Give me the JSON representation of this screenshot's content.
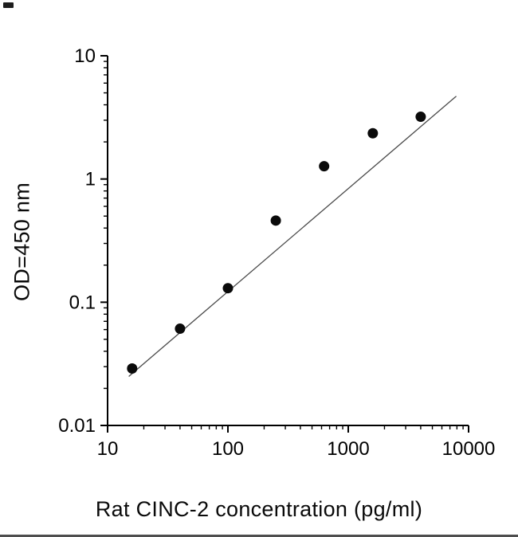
{
  "page": {
    "background": "#ffffff"
  },
  "chart_data": {
    "type": "scatter",
    "title": "",
    "xlabel": "Rat CINC-2 concentration (pg/ml)",
    "ylabel": "OD=450 nm",
    "x_scale": "log",
    "y_scale": "log",
    "xlim": [
      10,
      10000
    ],
    "ylim": [
      0.01,
      10
    ],
    "x_ticks": [
      10,
      100,
      1000,
      10000
    ],
    "y_ticks": [
      0.01,
      0.1,
      1,
      10
    ],
    "grid": "off",
    "legend": "none",
    "points": [
      {
        "x": 16,
        "y": 0.029
      },
      {
        "x": 40,
        "y": 0.061
      },
      {
        "x": 100,
        "y": 0.13
      },
      {
        "x": 250,
        "y": 0.46
      },
      {
        "x": 630,
        "y": 1.27
      },
      {
        "x": 1600,
        "y": 2.35
      },
      {
        "x": 4000,
        "y": 3.2
      }
    ],
    "fit_line": {
      "x1": 15,
      "y1": 0.025,
      "x2": 7900,
      "y2": 4.7
    },
    "marker_color": "#0a0a0a",
    "axis_color": "#000000",
    "line_color": "#4a4a4a"
  }
}
